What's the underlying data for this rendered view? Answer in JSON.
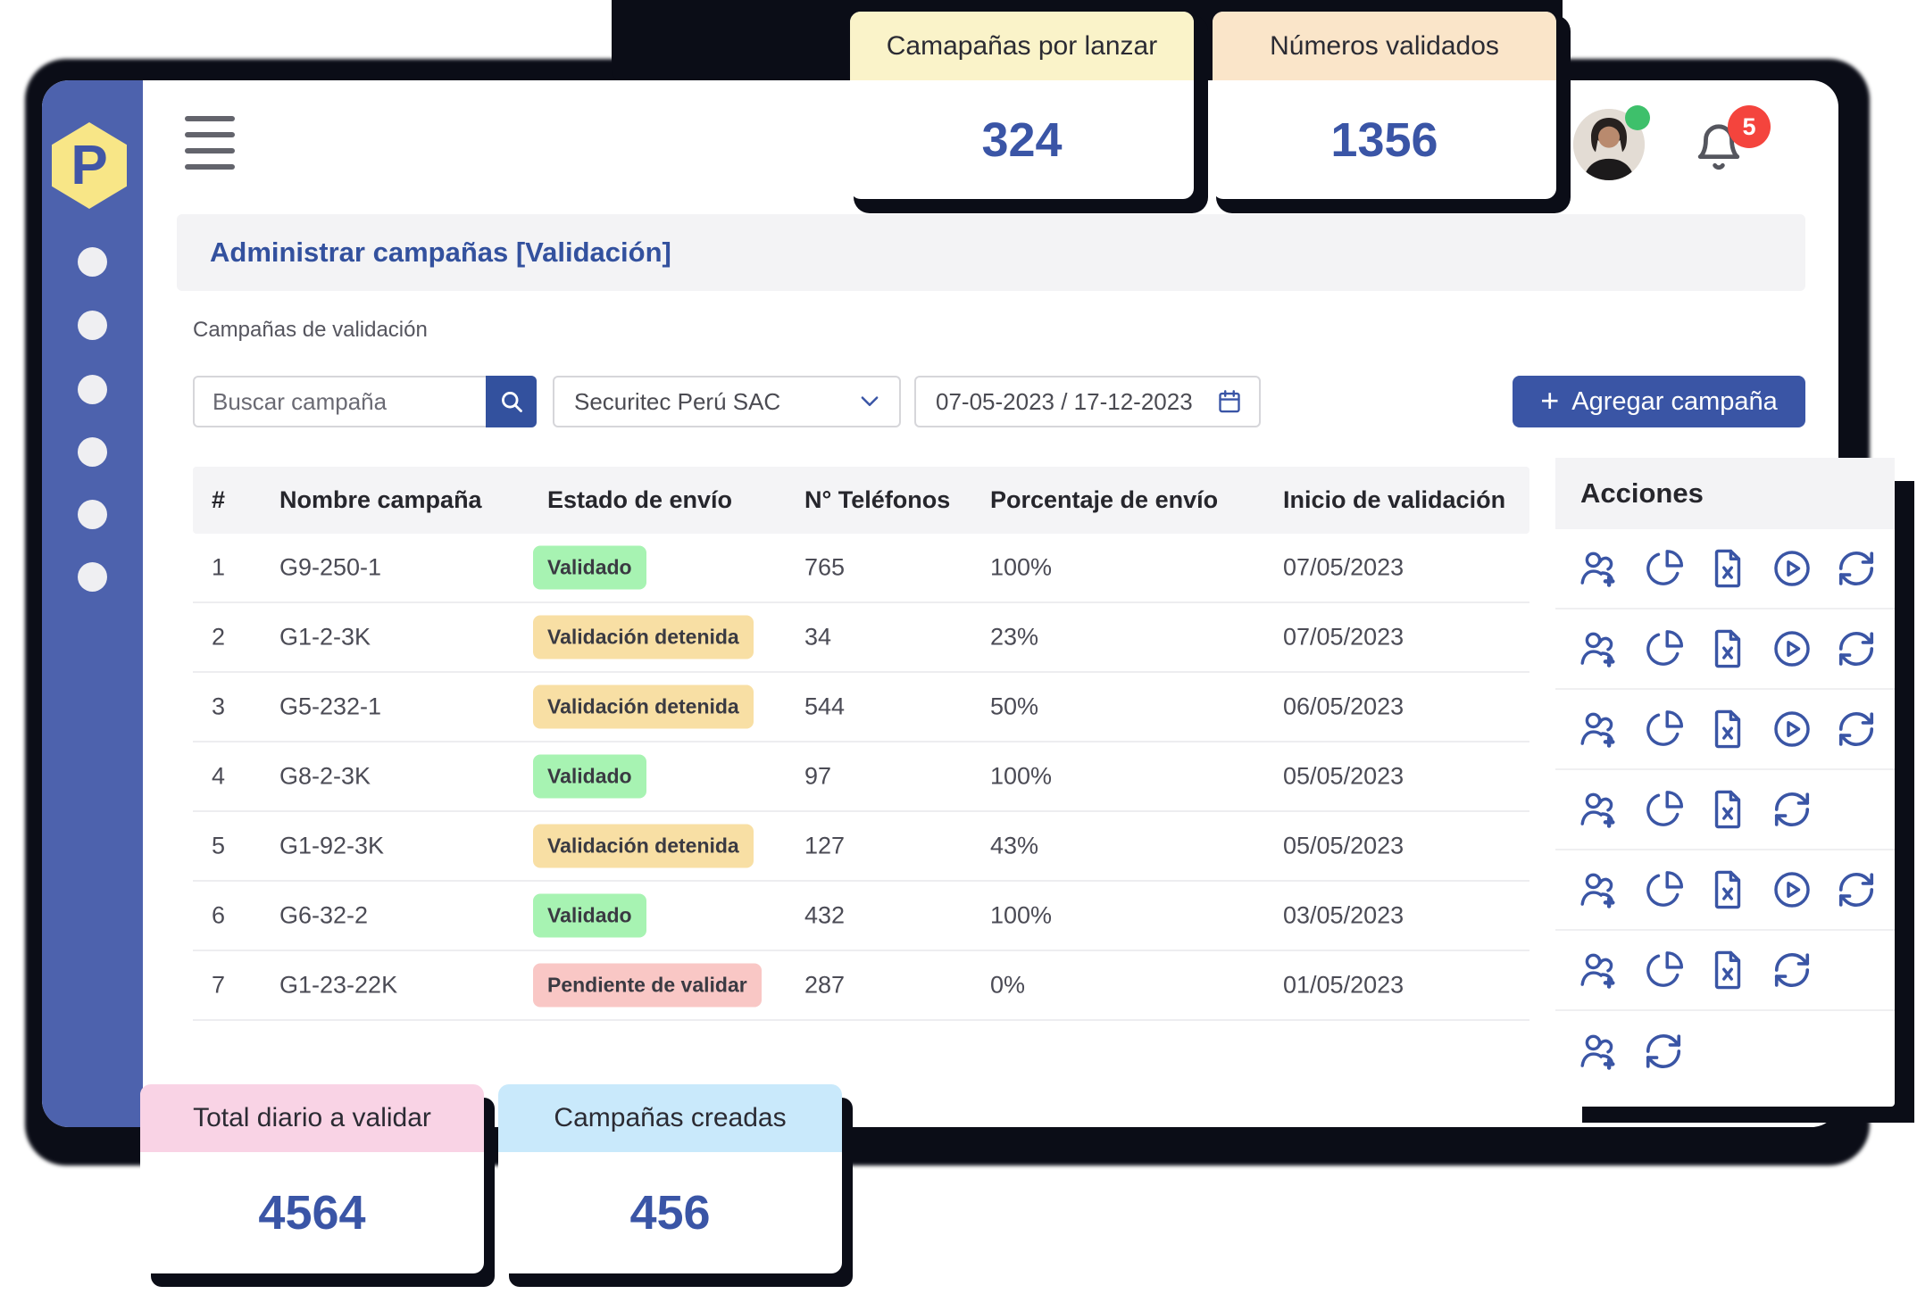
{
  "brand": {
    "logo_letter": "P"
  },
  "header": {
    "notification_count": "5"
  },
  "page": {
    "title": "Administrar campañas [Validación]",
    "subtitle": "Campañas de validación"
  },
  "filters": {
    "search_placeholder": "Buscar campaña",
    "company": "Securitec Perú SAC",
    "date_range": "07-05-2023 / 17-12-2023",
    "add_button": {
      "plus": "+",
      "label": "Agregar campaña"
    }
  },
  "stat_cards": {
    "top": [
      {
        "title": "Camapañas por lanzar",
        "value": "324",
        "header_color": "#FAF3C9"
      },
      {
        "title": "Números validados",
        "value": "1356",
        "header_color": "#FAE5C9"
      }
    ],
    "bottom": [
      {
        "title": "Total diario a validar",
        "value": "4564",
        "header_color": "#F9D3E5"
      },
      {
        "title": "Campañas creadas",
        "value": "456",
        "header_color": "#C9E9FB"
      }
    ]
  },
  "table": {
    "headers": [
      "#",
      "Nombre campaña",
      "Estado de envío",
      "N° Teléfonos",
      "Porcentaje de envío",
      "Inicio de validación"
    ],
    "rows": [
      {
        "num": "1",
        "name": "G9-250-1",
        "status": "Validado",
        "status_type": "success",
        "phones": "765",
        "percent": "100%",
        "date": "07/05/2023"
      },
      {
        "num": "2",
        "name": "G1-2-3K",
        "status": "Validación detenida",
        "status_type": "warning",
        "phones": "34",
        "percent": "23%",
        "date": "07/05/2023"
      },
      {
        "num": "3",
        "name": "G5-232-1",
        "status": "Validación detenida",
        "status_type": "warning",
        "phones": "544",
        "percent": "50%",
        "date": "06/05/2023"
      },
      {
        "num": "4",
        "name": "G8-2-3K",
        "status": "Validado",
        "status_type": "success",
        "phones": "97",
        "percent": "100%",
        "date": "05/05/2023"
      },
      {
        "num": "5",
        "name": "G1-92-3K",
        "status": "Validación detenida",
        "status_type": "warning",
        "phones": "127",
        "percent": "43%",
        "date": "05/05/2023"
      },
      {
        "num": "6",
        "name": "G6-32-2",
        "status": "Validado",
        "status_type": "success",
        "phones": "432",
        "percent": "100%",
        "date": "03/05/2023"
      },
      {
        "num": "7",
        "name": "G1-23-22K",
        "status": "Pendiente de validar",
        "status_type": "danger",
        "phones": "287",
        "percent": "0%",
        "date": "01/05/2023"
      }
    ]
  },
  "actions_panel": {
    "title": "Acciones",
    "rows": [
      {
        "icons": [
          "add-users",
          "pie-chart",
          "excel-file",
          "play-circle",
          "refresh"
        ]
      },
      {
        "icons": [
          "add-users",
          "pie-chart",
          "excel-file",
          "play-circle",
          "refresh"
        ]
      },
      {
        "icons": [
          "add-users",
          "pie-chart",
          "excel-file",
          "play-circle",
          "refresh"
        ]
      },
      {
        "icons": [
          "add-users",
          "pie-chart",
          "excel-file",
          "refresh"
        ]
      },
      {
        "icons": [
          "add-users",
          "pie-chart",
          "excel-file",
          "play-circle",
          "refresh"
        ]
      },
      {
        "icons": [
          "add-users",
          "pie-chart",
          "excel-file",
          "refresh"
        ]
      },
      {
        "icons": [
          "add-users",
          "refresh"
        ]
      }
    ]
  },
  "colors": {
    "sidebar": "#4D62AD",
    "accent_blue": "#3A55A6",
    "logo_yellow": "#F8E687",
    "badge_success": "#A7F3B2",
    "badge_warning": "#F8DFA4",
    "badge_danger": "#F9C7C5",
    "notification_red": "#F4443D",
    "online_green": "#3EC06B",
    "shadow_dark": "#0B0D17"
  }
}
